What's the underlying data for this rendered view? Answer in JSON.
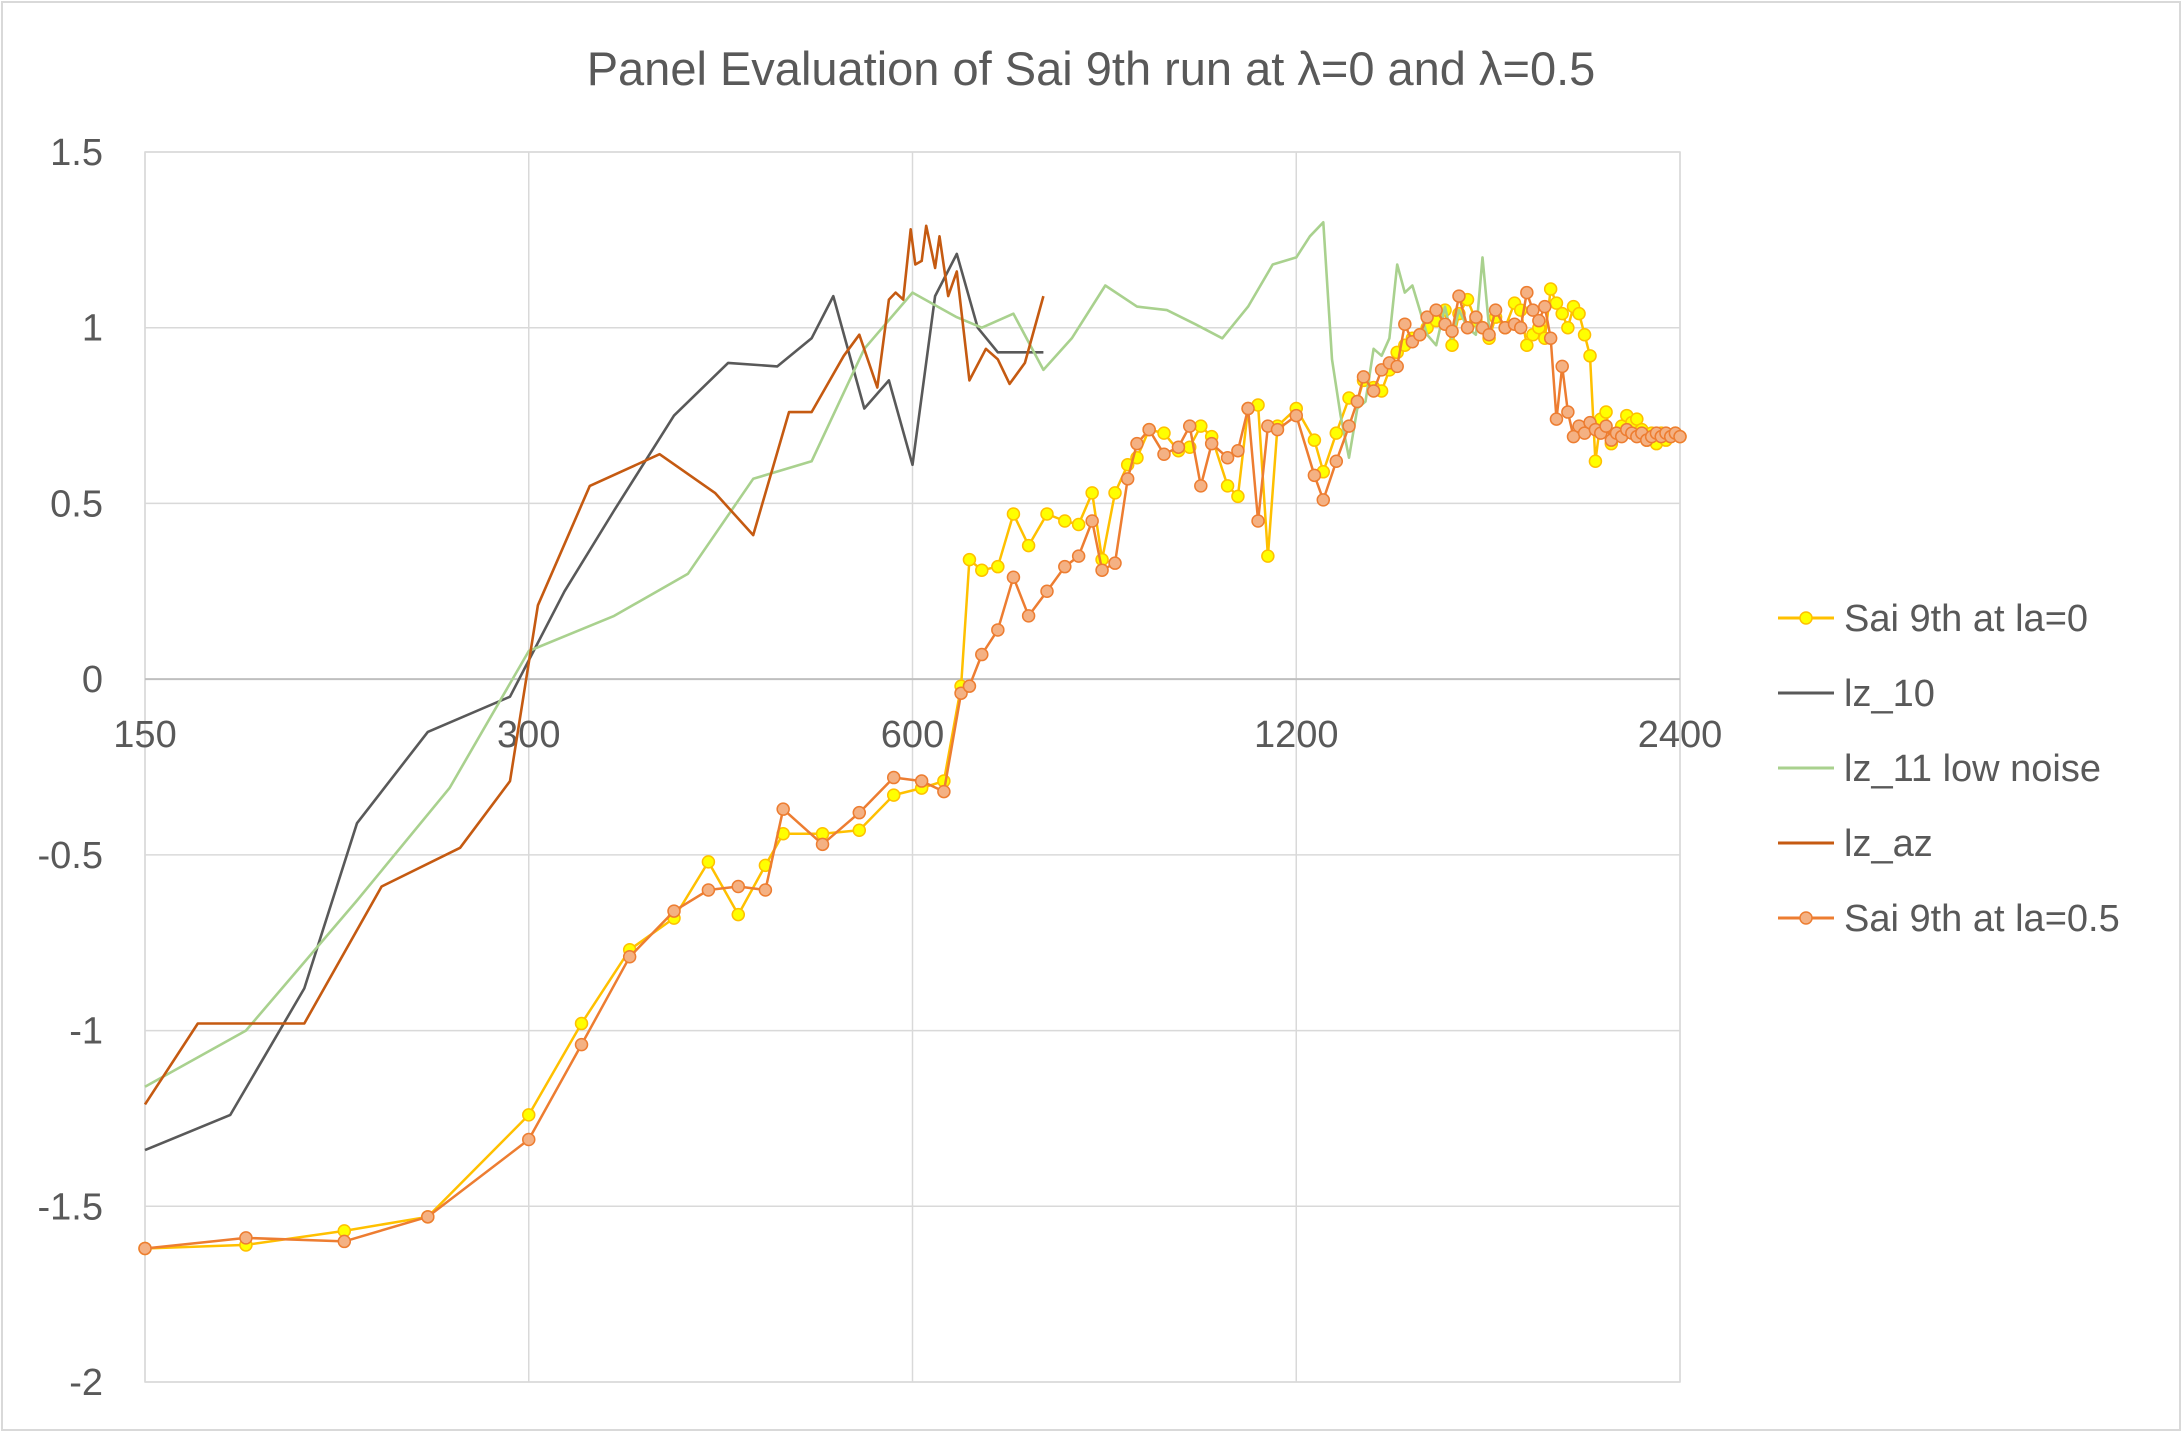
{
  "chart_data": {
    "type": "line",
    "title": "Panel Evaluation of Sai 9th run at λ=0 and λ=0.5",
    "xlabel": "",
    "ylabel": "",
    "x_scale": "log2",
    "xlim": [
      150,
      2400
    ],
    "ylim": [
      -2,
      1.5
    ],
    "x_ticks": [
      "150",
      "300",
      "600",
      "1200",
      "2400"
    ],
    "y_ticks": [
      "1.5",
      "1",
      "0.5",
      "0",
      "-0.5",
      "-1",
      "-1.5",
      "-2"
    ],
    "grid": true,
    "legend_position": "right",
    "series": [
      {
        "name": "Sai 9th at la=0",
        "color": "#FFC000",
        "marker_color": "#FFFF00",
        "marker": "circle",
        "x": [
          150,
          180,
          215,
          250,
          300,
          330,
          360,
          390,
          415,
          438,
          460,
          475,
          510,
          545,
          580,
          610,
          635,
          655,
          665,
          680,
          700,
          720,
          740,
          765,
          790,
          810,
          830,
          845,
          865,
          885,
          900,
          920,
          945,
          970,
          990,
          1010,
          1030,
          1060,
          1080,
          1100,
          1120,
          1140,
          1160,
          1200,
          1240,
          1260,
          1290,
          1320,
          1340,
          1355,
          1380,
          1400,
          1420,
          1440,
          1460,
          1480,
          1500,
          1520,
          1545,
          1570,
          1590,
          1610,
          1635,
          1660,
          1680,
          1700,
          1720,
          1750,
          1780,
          1800,
          1820,
          1840,
          1860,
          1880,
          1900,
          1920,
          1940,
          1960,
          1980,
          2000,
          2020,
          2040,
          2060,
          2080,
          2100,
          2120,
          2140,
          2160,
          2180,
          2200,
          2220,
          2240,
          2260,
          2280,
          2300,
          2320,
          2340,
          2360,
          2380,
          2400
        ],
        "y": [
          -1.62,
          -1.61,
          -1.57,
          -1.53,
          -1.24,
          -0.98,
          -0.77,
          -0.68,
          -0.52,
          -0.67,
          -0.53,
          -0.44,
          -0.44,
          -0.43,
          -0.33,
          -0.31,
          -0.29,
          -0.02,
          0.34,
          0.31,
          0.32,
          0.47,
          0.38,
          0.47,
          0.45,
          0.44,
          0.53,
          0.34,
          0.53,
          0.61,
          0.63,
          0.71,
          0.7,
          0.65,
          0.66,
          0.72,
          0.69,
          0.55,
          0.52,
          0.77,
          0.78,
          0.35,
          0.72,
          0.77,
          0.68,
          0.59,
          0.7,
          0.8,
          0.79,
          0.85,
          0.83,
          0.82,
          0.88,
          0.93,
          0.95,
          0.97,
          0.98,
          1.0,
          1.02,
          1.05,
          0.95,
          1.04,
          1.08,
          1.02,
          1.0,
          0.97,
          1.03,
          1.0,
          1.07,
          1.05,
          0.95,
          0.98,
          1.0,
          0.97,
          1.11,
          1.07,
          1.04,
          1.0,
          1.06,
          1.04,
          0.98,
          0.92,
          0.62,
          0.74,
          0.76,
          0.67,
          0.7,
          0.72,
          0.75,
          0.73,
          0.74,
          0.71,
          0.68,
          0.7,
          0.67,
          0.7,
          0.68,
          0.69,
          0.7,
          0.69
        ]
      },
      {
        "name": "lz_10",
        "color": "#595959",
        "marker": "none",
        "x": [
          150,
          175,
          200,
          220,
          250,
          290,
          320,
          350,
          390,
          430,
          470,
          500,
          520,
          550,
          575,
          600,
          625,
          650,
          675,
          700,
          730,
          760
        ],
        "y": [
          -1.34,
          -1.24,
          -0.88,
          -0.41,
          -0.15,
          -0.05,
          0.25,
          0.48,
          0.75,
          0.9,
          0.89,
          0.97,
          1.09,
          0.77,
          0.85,
          0.61,
          1.09,
          1.21,
          1.0,
          0.93,
          0.93,
          0.93
        ]
      },
      {
        "name": "lz_11 low noise",
        "color": "#A9D18E",
        "marker": "none",
        "x": [
          150,
          180,
          220,
          260,
          300,
          350,
          400,
          450,
          500,
          550,
          600,
          650,
          680,
          720,
          760,
          800,
          850,
          900,
          950,
          1000,
          1050,
          1100,
          1150,
          1200,
          1230,
          1260,
          1280,
          1300,
          1320,
          1340,
          1360,
          1380,
          1400,
          1420,
          1440,
          1460,
          1480,
          1500,
          1520,
          1545,
          1570,
          1590,
          1610,
          1635,
          1660,
          1680,
          1700
        ],
        "y": [
          -1.16,
          -1.0,
          -0.63,
          -0.31,
          0.08,
          0.18,
          0.3,
          0.57,
          0.62,
          0.94,
          1.1,
          1.03,
          1.0,
          1.04,
          0.88,
          0.97,
          1.12,
          1.06,
          1.05,
          1.01,
          0.97,
          1.06,
          1.18,
          1.2,
          1.26,
          1.3,
          0.91,
          0.75,
          0.63,
          0.77,
          0.79,
          0.94,
          0.92,
          0.97,
          1.18,
          1.1,
          1.12,
          1.05,
          0.98,
          0.95,
          1.06,
          0.97,
          1.05,
          1.0,
          0.98,
          1.2,
          1.0
        ]
      },
      {
        "name": "lz_az",
        "color": "#C55A11",
        "marker": "none",
        "x": [
          150,
          165,
          200,
          230,
          265,
          290,
          305,
          335,
          380,
          420,
          450,
          480,
          500,
          530,
          545,
          563,
          575,
          582,
          590,
          598,
          603,
          610,
          615,
          625,
          630,
          640,
          650,
          665,
          685,
          700,
          715,
          735,
          760
        ],
        "y": [
          -1.21,
          -0.98,
          -0.98,
          -0.59,
          -0.48,
          -0.29,
          0.21,
          0.55,
          0.64,
          0.53,
          0.41,
          0.76,
          0.76,
          0.92,
          0.98,
          0.83,
          1.08,
          1.1,
          1.08,
          1.28,
          1.18,
          1.19,
          1.29,
          1.17,
          1.26,
          1.09,
          1.16,
          0.85,
          0.94,
          0.91,
          0.84,
          0.9,
          1.09
        ]
      },
      {
        "name": "Sai 9th at la=0.5",
        "color": "#ED7D31",
        "marker_color": "#F4B183",
        "marker": "circle",
        "x": [
          150,
          180,
          215,
          250,
          300,
          330,
          360,
          390,
          415,
          438,
          460,
          475,
          510,
          545,
          580,
          610,
          635,
          655,
          665,
          680,
          700,
          720,
          740,
          765,
          790,
          810,
          830,
          845,
          865,
          885,
          900,
          920,
          945,
          970,
          990,
          1010,
          1030,
          1060,
          1080,
          1100,
          1120,
          1140,
          1160,
          1200,
          1240,
          1260,
          1290,
          1320,
          1340,
          1355,
          1380,
          1400,
          1420,
          1440,
          1460,
          1480,
          1500,
          1520,
          1545,
          1570,
          1590,
          1610,
          1635,
          1660,
          1680,
          1700,
          1720,
          1750,
          1780,
          1800,
          1820,
          1840,
          1860,
          1880,
          1900,
          1920,
          1940,
          1960,
          1980,
          2000,
          2020,
          2040,
          2060,
          2080,
          2100,
          2120,
          2140,
          2160,
          2180,
          2200,
          2220,
          2240,
          2260,
          2280,
          2300,
          2320,
          2340,
          2360,
          2380,
          2400
        ],
        "y": [
          -1.62,
          -1.59,
          -1.6,
          -1.53,
          -1.31,
          -1.04,
          -0.79,
          -0.66,
          -0.6,
          -0.59,
          -0.6,
          -0.37,
          -0.47,
          -0.38,
          -0.28,
          -0.29,
          -0.32,
          -0.04,
          -0.02,
          0.07,
          0.14,
          0.29,
          0.18,
          0.25,
          0.32,
          0.35,
          0.45,
          0.31,
          0.33,
          0.57,
          0.67,
          0.71,
          0.64,
          0.66,
          0.72,
          0.55,
          0.67,
          0.63,
          0.65,
          0.77,
          0.45,
          0.72,
          0.71,
          0.75,
          0.58,
          0.51,
          0.62,
          0.72,
          0.79,
          0.86,
          0.82,
          0.88,
          0.9,
          0.89,
          1.01,
          0.96,
          0.98,
          1.03,
          1.05,
          1.01,
          0.99,
          1.09,
          1.0,
          1.03,
          1.0,
          0.98,
          1.05,
          1.0,
          1.01,
          1.0,
          1.1,
          1.05,
          1.02,
          1.06,
          0.97,
          0.74,
          0.89,
          0.76,
          0.69,
          0.72,
          0.7,
          0.73,
          0.71,
          0.7,
          0.72,
          0.68,
          0.7,
          0.69,
          0.71,
          0.7,
          0.69,
          0.7,
          0.68,
          0.69,
          0.7,
          0.69,
          0.7,
          0.69,
          0.7,
          0.69
        ]
      }
    ]
  }
}
